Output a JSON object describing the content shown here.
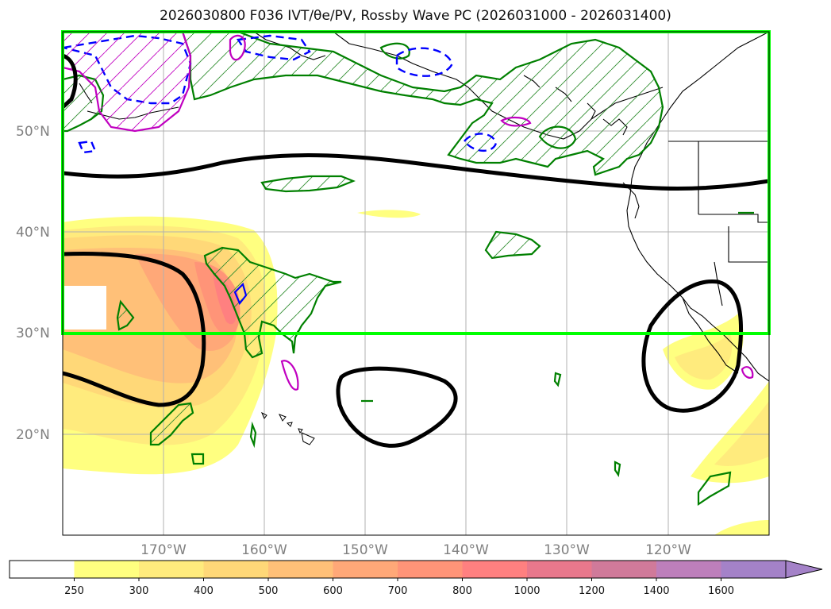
{
  "title": "2026030800 F036 IVT/θe/PV, Rossby Wave PC (2026031000 - 2026031400)",
  "latitude_labels": [
    "50°N",
    "40°N",
    "30°N",
    "20°N"
  ],
  "longitude_labels": [
    "170°W",
    "160°W",
    "150°W",
    "140°W",
    "130°W",
    "120°W"
  ],
  "colorbar": {
    "ticks": [
      "250",
      "300",
      "400",
      "500",
      "600",
      "700",
      "800",
      "1000",
      "1200",
      "1400",
      "1600"
    ],
    "colors": [
      "#ffffff",
      "#ffff80",
      "#ffeb7d",
      "#ffd878",
      "#ffc078",
      "#ffa878",
      "#ff9478",
      "#ff8080",
      "#e8788c",
      "#d07a9a",
      "#bd7fbb",
      "#a482c8"
    ],
    "extend": "max"
  },
  "colors": {
    "box": "#00ff00",
    "pc_contour": "#000000",
    "pos_contour": "#008000",
    "neg_contour": "#0000ff",
    "pv_contour": "#c000c0"
  }
}
